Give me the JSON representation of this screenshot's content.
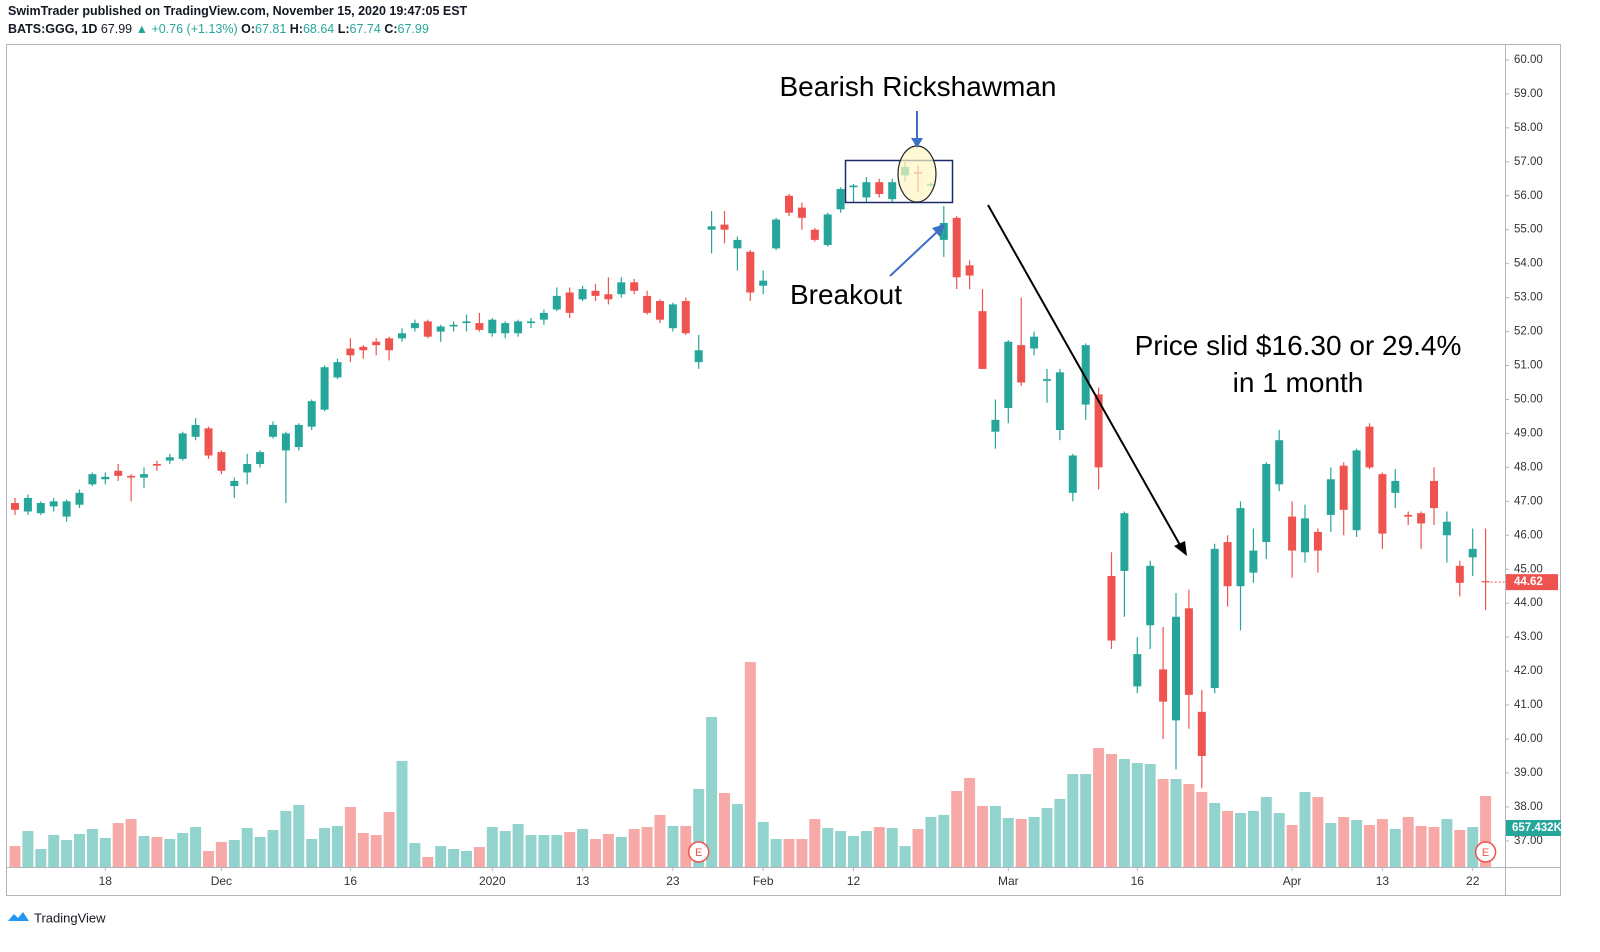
{
  "header": {
    "publisher": "SwimTrader published on TradingView.com, November 15, 2020 19:47:05 EST",
    "symbol": "BATS:GGG, 1D",
    "price": 67.99,
    "change": "▲ +0.76 (+1.13%)",
    "open_label": "O:",
    "open": 67.81,
    "high_label": "H:",
    "high": 68.64,
    "low_label": "L:",
    "low": 67.74,
    "close_label": "C:",
    "close": 67.99
  },
  "footer": {
    "brand": "TradingView"
  },
  "annotations": {
    "pattern": "Bearish Rickshawman",
    "breakout": "Breakout",
    "slide_line1": "Price slid $16.30 or 29.4%",
    "slide_line2": "in 1 month"
  },
  "chart_data": {
    "type": "candlestick",
    "up_color": "#26a69a",
    "down_color": "#ef5350",
    "volume_up_color": "#93d3cd",
    "volume_down_color": "#f7a9a7",
    "categories": [
      null,
      null,
      null,
      null,
      null,
      null,
      null,
      "18",
      null,
      null,
      null,
      null,
      null,
      null,
      null,
      null,
      "Dec",
      null,
      null,
      null,
      null,
      null,
      null,
      null,
      null,
      null,
      "16",
      null,
      null,
      null,
      null,
      null,
      null,
      null,
      null,
      null,
      null,
      "2020",
      null,
      null,
      null,
      null,
      null,
      null,
      "13",
      null,
      null,
      null,
      null,
      null,
      null,
      "23",
      null,
      null,
      null,
      null,
      null,
      null,
      "Feb",
      null,
      null,
      null,
      null,
      null,
      null,
      "12",
      null,
      null,
      null,
      null,
      null,
      null,
      null,
      null,
      null,
      null,
      null,
      "Mar",
      null,
      null,
      null,
      null,
      null,
      null,
      null,
      null,
      null,
      "16",
      null,
      null,
      null,
      null,
      null,
      null,
      null,
      null,
      null,
      null,
      null,
      "Apr",
      null,
      null,
      null,
      null,
      null,
      null,
      "13",
      null,
      null,
      null,
      null,
      null,
      null,
      "22",
      null
    ],
    "open": [
      46.95,
      46.7,
      46.65,
      46.85,
      46.55,
      46.9,
      47.5,
      47.65,
      47.9,
      47.75,
      47.7,
      48.1,
      48.2,
      48.25,
      48.9,
      49.15,
      48.45,
      47.45,
      47.85,
      48.1,
      48.9,
      48.5,
      48.6,
      49.2,
      49.7,
      50.65,
      51.5,
      51.55,
      51.7,
      51.8,
      51.8,
      52.1,
      52.3,
      52.0,
      52.15,
      52.25,
      52.25,
      51.95,
      51.95,
      51.95,
      52.25,
      52.35,
      52.65,
      53.15,
      52.95,
      53.2,
      53.1,
      53.1,
      53.45,
      53.05,
      52.9,
      52.1,
      52.9,
      51.1,
      55.0,
      55.15,
      54.45,
      54.35,
      53.35,
      54.45,
      56.0,
      55.65,
      55.0,
      54.55,
      55.6,
      56.25,
      55.95,
      56.4,
      55.9,
      56.6,
      56.7,
      56.3,
      54.7,
      55.35,
      53.95,
      52.6,
      49.05,
      49.75,
      51.6,
      51.5,
      50.55,
      49.1,
      47.25,
      49.85,
      50.15,
      44.8,
      44.95,
      41.55,
      43.35,
      42.05,
      40.55,
      43.85,
      40.8,
      41.5,
      45.8,
      44.5,
      44.9,
      45.8,
      47.5,
      46.55,
      45.5,
      46.1,
      46.6,
      48.05,
      46.15,
      49.2,
      47.8,
      47.25,
      46.6,
      46.65,
      47.6,
      46.0,
      45.1,
      45.35,
      44.65
    ],
    "high": [
      47.1,
      47.2,
      47.0,
      47.1,
      47.05,
      47.35,
      47.85,
      47.85,
      48.1,
      47.8,
      48.0,
      48.2,
      48.4,
      49.05,
      49.45,
      49.2,
      48.5,
      47.7,
      48.4,
      48.5,
      49.35,
      49.05,
      49.3,
      50.0,
      51.0,
      51.2,
      51.8,
      51.6,
      51.8,
      51.85,
      52.1,
      52.35,
      52.35,
      52.2,
      52.3,
      52.5,
      52.55,
      52.4,
      52.3,
      52.35,
      52.4,
      52.65,
      53.3,
      53.3,
      53.35,
      53.4,
      53.6,
      53.6,
      53.55,
      53.2,
      52.95,
      52.85,
      53.0,
      51.9,
      55.55,
      55.55,
      54.8,
      54.4,
      53.8,
      55.35,
      56.05,
      55.8,
      55.05,
      55.5,
      56.25,
      56.35,
      56.55,
      56.5,
      56.5,
      57.0,
      56.9,
      56.4,
      55.7,
      55.4,
      54.1,
      53.25,
      50.0,
      51.75,
      53.0,
      52.0,
      50.9,
      50.9,
      48.4,
      51.65,
      50.35,
      45.5,
      46.7,
      43.0,
      45.25,
      43.3,
      44.3,
      44.4,
      41.45,
      45.75,
      46.0,
      47.0,
      46.2,
      48.15,
      49.1,
      47.0,
      46.9,
      46.2,
      48.0,
      48.15,
      48.55,
      49.3,
      47.85,
      47.95,
      46.7,
      46.7,
      48.0,
      46.7,
      45.25,
      46.2,
      46.2
    ],
    "low": [
      46.6,
      46.6,
      46.6,
      46.7,
      46.4,
      46.8,
      47.45,
      47.5,
      47.6,
      47.0,
      47.4,
      47.9,
      48.1,
      48.2,
      48.8,
      48.25,
      47.8,
      47.1,
      47.5,
      48.0,
      48.85,
      46.95,
      48.5,
      49.1,
      49.65,
      50.6,
      51.1,
      51.2,
      51.3,
      51.15,
      51.7,
      52.0,
      51.8,
      51.7,
      52.0,
      52.0,
      52.0,
      51.85,
      51.8,
      51.85,
      52.1,
      52.2,
      52.6,
      52.4,
      52.9,
      52.9,
      52.8,
      53.0,
      53.1,
      52.5,
      52.25,
      52.0,
      51.9,
      50.9,
      54.3,
      54.6,
      53.8,
      52.9,
      53.1,
      54.4,
      55.4,
      55.0,
      54.65,
      54.5,
      55.5,
      55.8,
      55.8,
      55.95,
      55.8,
      56.4,
      56.1,
      56.25,
      54.2,
      53.25,
      53.25,
      50.9,
      48.55,
      49.3,
      50.4,
      51.3,
      49.9,
      48.8,
      47.0,
      49.4,
      47.35,
      42.65,
      43.6,
      41.35,
      42.65,
      40.0,
      39.1,
      40.3,
      38.55,
      41.35,
      43.9,
      43.2,
      44.6,
      45.3,
      47.3,
      44.75,
      45.2,
      44.9,
      46.1,
      46.0,
      45.95,
      47.95,
      45.6,
      46.8,
      46.3,
      45.6,
      46.3,
      45.2,
      44.2,
      44.8,
      43.8
    ],
    "close": [
      46.75,
      47.1,
      46.95,
      47.0,
      47.0,
      47.25,
      47.8,
      47.72,
      47.75,
      47.7,
      47.8,
      48.05,
      48.3,
      49.0,
      49.25,
      48.35,
      47.9,
      47.6,
      48.1,
      48.45,
      49.25,
      49.0,
      49.25,
      49.95,
      50.95,
      51.1,
      51.3,
      51.45,
      51.6,
      51.45,
      51.95,
      52.25,
      51.85,
      52.15,
      52.2,
      52.3,
      52.05,
      52.35,
      52.25,
      52.3,
      52.3,
      52.55,
      53.05,
      52.55,
      53.25,
      53.05,
      52.95,
      53.45,
      53.2,
      52.55,
      52.35,
      52.8,
      51.95,
      51.45,
      55.1,
      55.0,
      54.7,
      53.15,
      53.5,
      55.3,
      55.5,
      55.35,
      54.7,
      55.45,
      56.2,
      56.3,
      56.4,
      56.05,
      56.4,
      56.85,
      56.65,
      56.35,
      55.2,
      53.6,
      53.65,
      50.9,
      49.4,
      51.7,
      50.5,
      51.85,
      50.6,
      50.8,
      48.35,
      51.6,
      48.0,
      42.9,
      46.65,
      42.5,
      45.1,
      41.1,
      43.6,
      41.3,
      39.5,
      45.6,
      44.5,
      46.8,
      45.55,
      48.1,
      48.8,
      45.55,
      46.5,
      45.55,
      47.65,
      46.75,
      48.5,
      48.0,
      46.05,
      47.6,
      46.55,
      46.35,
      46.8,
      46.4,
      44.6,
      45.6,
      44.62
    ],
    "volume": [
      194000,
      333000,
      167000,
      296000,
      250000,
      306000,
      352000,
      269000,
      407000,
      444000,
      287000,
      278000,
      259000,
      315000,
      370000,
      148000,
      232000,
      250000,
      361000,
      278000,
      343000,
      519000,
      574000,
      259000,
      361000,
      380000,
      556000,
      315000,
      296000,
      509000,
      982000,
      222000,
      93000,
      194000,
      167000,
      148000,
      185000,
      370000,
      333000,
      398000,
      296000,
      296000,
      296000,
      324000,
      352000,
      259000,
      306000,
      278000,
      352000,
      370000,
      482000,
      380000,
      380000,
      722000,
      1389000,
      685000,
      583000,
      1898000,
      417000,
      259000,
      259000,
      259000,
      444000,
      361000,
      333000,
      287000,
      333000,
      370000,
      361000,
      194000,
      352000,
      463000,
      482000,
      704000,
      824000,
      565000,
      565000,
      454000,
      444000,
      463000,
      546000,
      630000,
      861000,
      861000,
      1102000,
      1046000,
      1000000,
      963000,
      954000,
      815000,
      815000,
      769000,
      695000,
      593000,
      519000,
      500000,
      519000,
      648000,
      500000,
      389000,
      695000,
      648000,
      407000,
      463000,
      435000,
      389000,
      444000,
      352000,
      463000,
      380000,
      370000,
      444000,
      343000,
      370000,
      657432
    ],
    "volume_last_label": "657.432K",
    "last_price": 44.62,
    "earnings_markers": [
      {
        "index": 53,
        "label": "E"
      },
      {
        "index": 114,
        "label": "E"
      }
    ],
    "ylim": [
      36.23,
      60.44
    ],
    "yticks": [
      {
        "value": 37,
        "label": "37.00"
      },
      {
        "value": 38,
        "label": "38.00"
      },
      {
        "value": 39,
        "label": "39.00"
      },
      {
        "value": 40,
        "label": "40.00"
      },
      {
        "value": 41,
        "label": "41.00"
      },
      {
        "value": 42,
        "label": "42.00"
      },
      {
        "value": 43,
        "label": "43.00"
      },
      {
        "value": 44,
        "label": "44.00"
      },
      {
        "value": 45,
        "label": "45.00"
      },
      {
        "value": 46,
        "label": "46.00"
      },
      {
        "value": 47,
        "label": "47.00"
      },
      {
        "value": 48,
        "label": "48.00"
      },
      {
        "value": 49,
        "label": "49.00"
      },
      {
        "value": 50,
        "label": "50.00"
      },
      {
        "value": 51,
        "label": "51.00"
      },
      {
        "value": 52,
        "label": "52.00"
      },
      {
        "value": 53,
        "label": "53.00"
      },
      {
        "value": 54,
        "label": "54.00"
      },
      {
        "value": 55,
        "label": "55.00"
      },
      {
        "value": 56,
        "label": "56.00"
      },
      {
        "value": 57,
        "label": "57.00"
      },
      {
        "value": 58,
        "label": "58.00"
      },
      {
        "value": 59,
        "label": "59.00"
      },
      {
        "value": 60,
        "label": "60.00"
      }
    ],
    "y2lim": [
      0,
      7612000
    ]
  }
}
